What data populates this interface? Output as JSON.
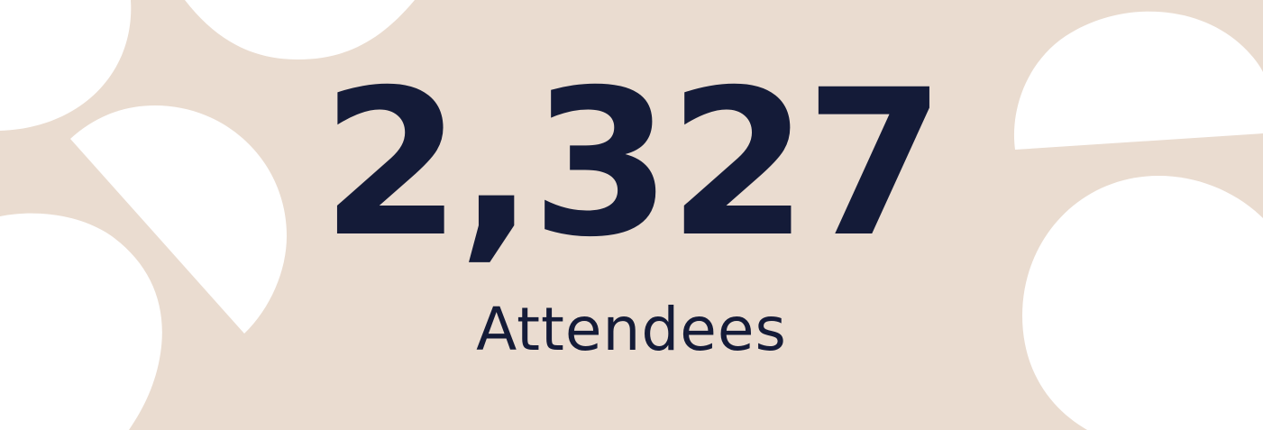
{
  "colors": {
    "background": "#eadcd0",
    "shapes": "#ffffff",
    "text": "#141b38"
  },
  "stat": {
    "value": "2,327",
    "label": "Attendees"
  }
}
